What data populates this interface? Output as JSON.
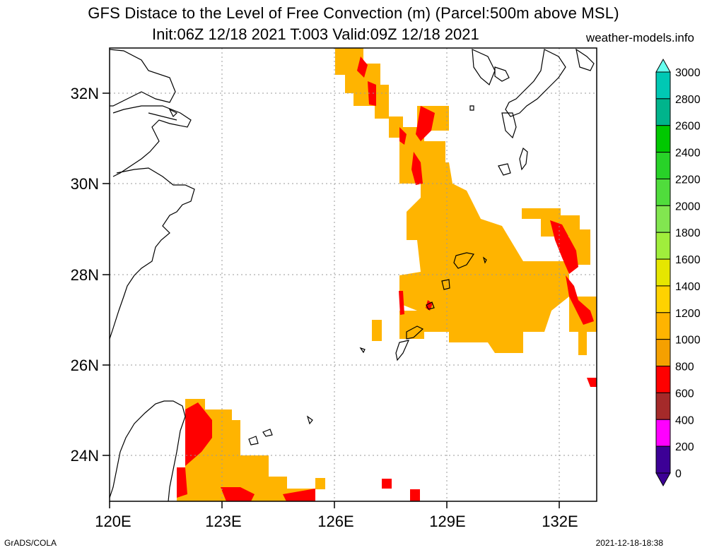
{
  "header": {
    "title_line1": "GFS Distace to the Level of Free Convection (m) (Parcel:500m above MSL)",
    "title_line2": "Init:06Z 12/18 2021 T:003 Valid:09Z 12/18 2021",
    "credit": "weather-models.info"
  },
  "footer": {
    "left": "GrADS/COLA",
    "right": "2021-12-18-18:38"
  },
  "map": {
    "lon_labels": [
      "120E",
      "123E",
      "126E",
      "129E",
      "132E"
    ],
    "lat_labels": [
      "32N",
      "30N",
      "28N",
      "26N",
      "24N"
    ],
    "lon_range": [
      120,
      133
    ],
    "lat_range": [
      23,
      33
    ]
  },
  "colorbar": {
    "labels": [
      "3000",
      "2800",
      "2600",
      "2400",
      "2200",
      "2000",
      "1800",
      "1600",
      "1400",
      "1200",
      "1000",
      "800",
      "600",
      "400",
      "200",
      "0"
    ],
    "colors": [
      "#00e6e6",
      "#00c8b4",
      "#00b48c",
      "#00c800",
      "#28d228",
      "#50dc3c",
      "#82e650",
      "#a0ee3c",
      "#e6e600",
      "#ffd200",
      "#ffb400",
      "#f5a000",
      "#ff0000",
      "#a52a2a",
      "#ff00ff",
      "#3c0096"
    ],
    "top_arrow_color": "#66ffee",
    "bottom_arrow_color": "#3c0096"
  }
}
